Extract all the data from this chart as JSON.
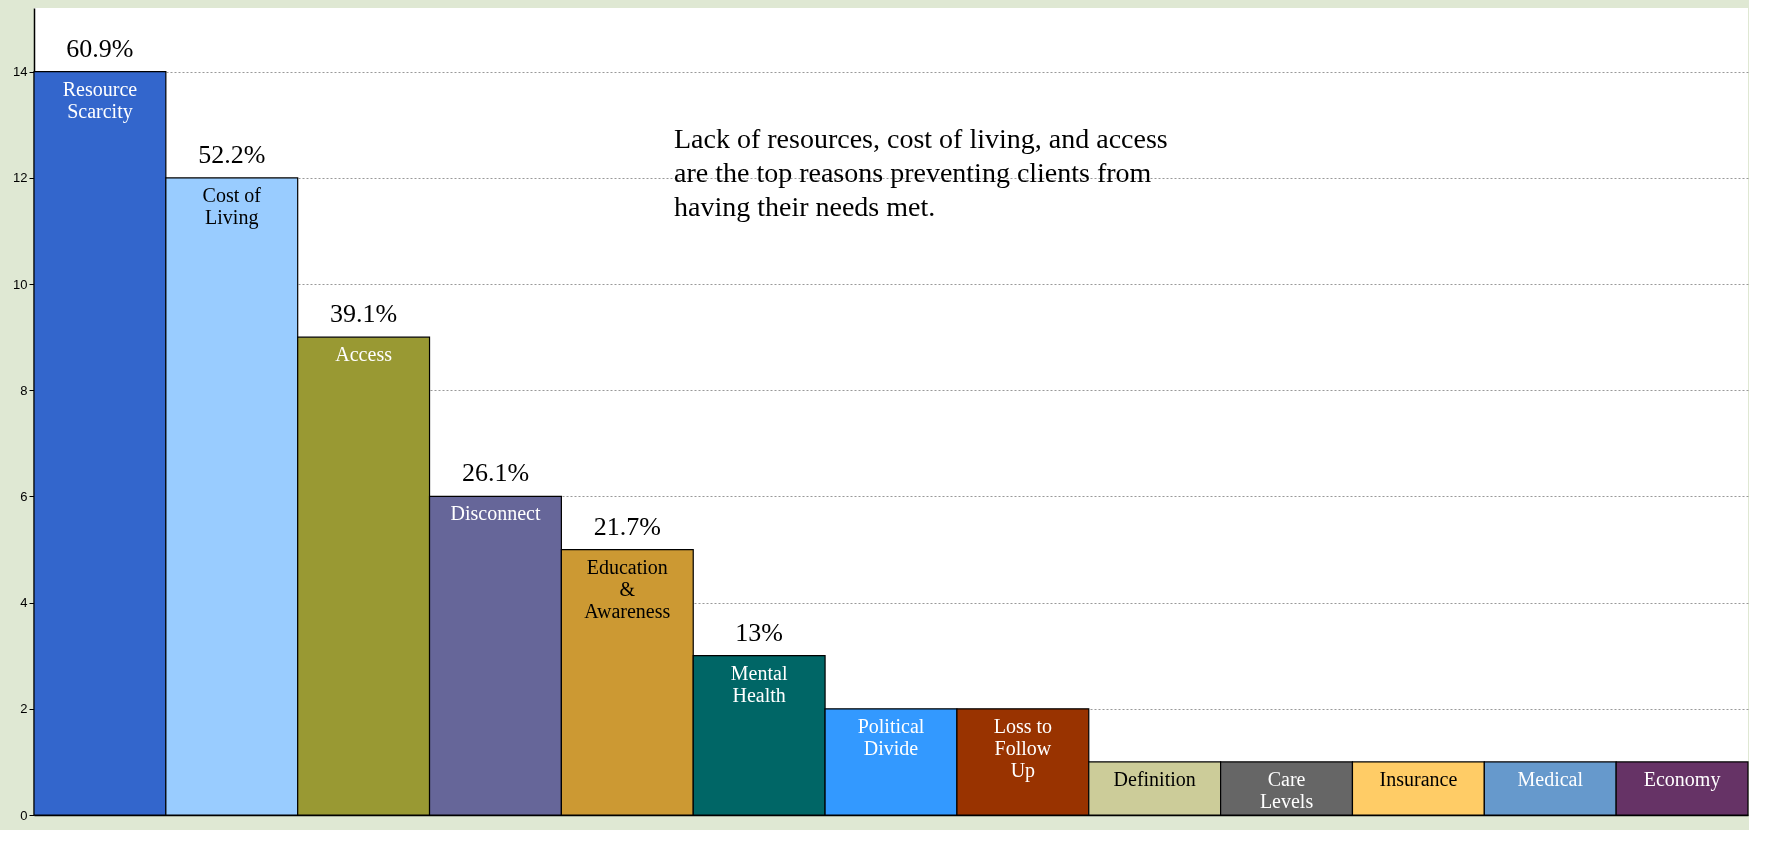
{
  "chart_data": {
    "type": "bar",
    "categories": [
      "Resource Scarcity",
      "Cost of Living",
      "Access",
      "Disconnect",
      "Education & Awareness",
      "Mental Health",
      "Political Divide",
      "Loss to Follow Up",
      "Definition",
      "Care Levels",
      "Insurance",
      "Medical",
      "Economy"
    ],
    "values": [
      14,
      12,
      9,
      6,
      5,
      3,
      2,
      2,
      1,
      1,
      1,
      1,
      1
    ],
    "colors": [
      "#3366cc",
      "#99ccff",
      "#999933",
      "#666699",
      "#cc9933",
      "#006666",
      "#3399ff",
      "#993300",
      "#cccc99",
      "#666666",
      "#ffcc66",
      "#6699cc",
      "#663366"
    ],
    "ylim": [
      0,
      15.2
    ],
    "yticks": [
      0,
      2,
      4,
      6,
      8,
      10,
      12,
      14
    ],
    "grid": "y",
    "tick_labels": "y",
    "legend": false,
    "annotations": [
      "Lack of resources, cost of living, and access are the top reasons preventing clients from having their needs met.",
      {
        "text": "60.9%",
        "x": "Resource Scarcity",
        "y": 14
      },
      {
        "text": "52.2%",
        "x": "Cost of Living",
        "y": 12
      },
      {
        "text": "39.1%",
        "x": "Access",
        "y": 9
      },
      {
        "text": "26.1%",
        "x": "Disconnect",
        "y": 6
      },
      {
        "text": "21.7%",
        "x": "Education & Awareness",
        "y": 5
      },
      {
        "text": "13%",
        "x": "Mental Health",
        "y": 3
      }
    ]
  }
}
